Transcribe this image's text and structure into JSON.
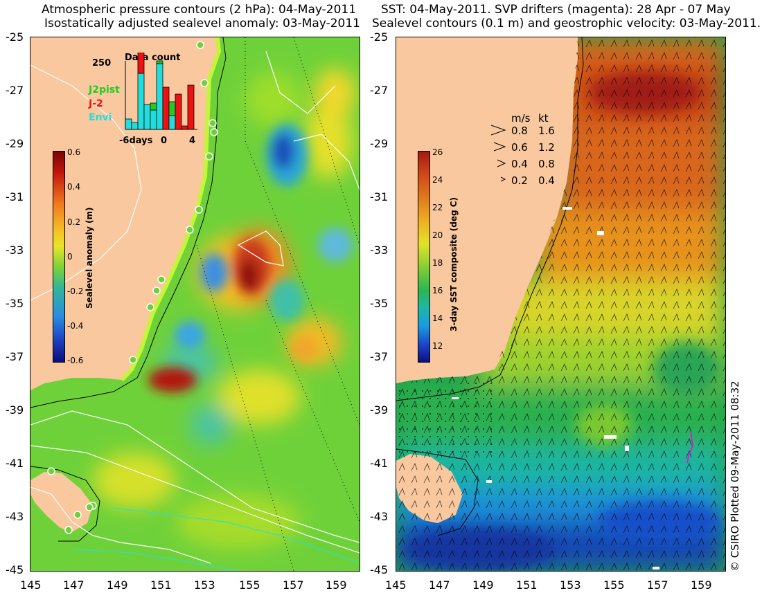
{
  "left_panel": {
    "title_line1": "Atmospheric pressure contours (2 hPa): 04-May-2011",
    "title_line2": "Isostatically adjusted sealevel anomaly: 03-May-2011",
    "colorbar": {
      "label": "Sealevel anomaly (m)",
      "ticks": [
        "0.6",
        "0.4",
        "0.2",
        "0",
        "-0.2",
        "-0.4",
        "-0.6"
      ]
    },
    "inset": {
      "title": "Data count",
      "ymax_label": "250",
      "x_labels": [
        "-6days",
        "0",
        "4"
      ],
      "legend": [
        {
          "name": "J2pist",
          "color": "#22cc22"
        },
        {
          "name": "J-2",
          "color": "#ee1111"
        },
        {
          "name": "Envi",
          "color": "#22dddd"
        }
      ]
    }
  },
  "right_panel": {
    "title_line1": "SST: 04-May-2011. SVP drifters (magenta): 28 Apr - 07 May",
    "title_line2": "Sealevel contours (0.1 m) and geostrophic velocity: 03-May-2011.",
    "colorbar": {
      "label": "3-day SST composite (deg C)",
      "ticks": [
        "26",
        "24",
        "22",
        "20",
        "18",
        "16",
        "14",
        "12"
      ]
    },
    "velocity_legend": {
      "header_ms": "m/s",
      "header_kt": "kt",
      "rows": [
        {
          "ms": "0.8",
          "kt": "1.6"
        },
        {
          "ms": "0.6",
          "kt": "1.2"
        },
        {
          "ms": "0.4",
          "kt": "0.8"
        },
        {
          "ms": "0.2",
          "kt": "0.4"
        }
      ]
    }
  },
  "axes": {
    "y_ticks": [
      "-25",
      "-27",
      "-29",
      "-31",
      "-33",
      "-35",
      "-37",
      "-39",
      "-41",
      "-43",
      "-45"
    ],
    "x_ticks": [
      "145",
      "147",
      "149",
      "151",
      "153",
      "155",
      "157",
      "159"
    ]
  },
  "copyright": "© CSIRO Plotted 09-May-2011 08:32",
  "colors": {
    "land": "#f9c89e",
    "sla_background": "#6fd13a",
    "sst_background": "#22a24a"
  }
}
